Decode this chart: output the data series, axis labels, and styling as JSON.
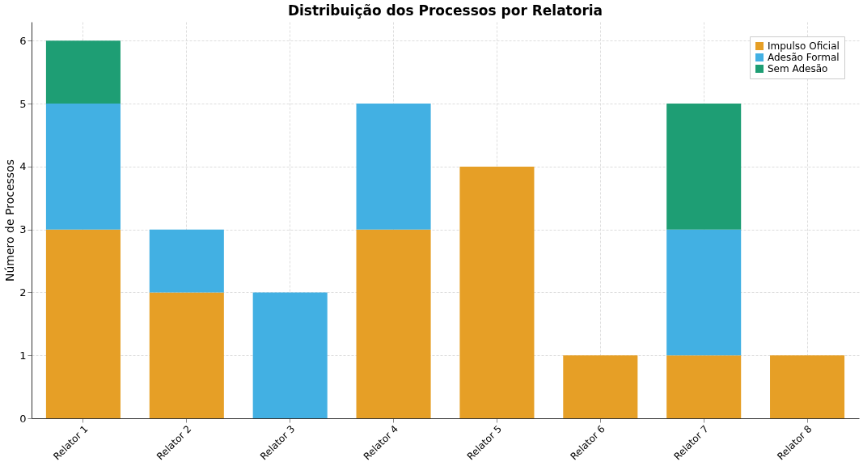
{
  "chart_data": {
    "type": "bar",
    "title": "Distribuição dos Processos por Relatoria",
    "ylabel": "Número de Processos",
    "categories": [
      "Relator 1",
      "Relator 2",
      "Relator 3",
      "Relator 4",
      "Relator 5",
      "Relator 6",
      "Relator 7",
      "Relator 8"
    ],
    "series": [
      {
        "name": "Impulso Oficial",
        "color": "#e69f26",
        "values": [
          3,
          2,
          0,
          3,
          4,
          1,
          1,
          1
        ]
      },
      {
        "name": "Adesão Formal",
        "color": "#42b0e3",
        "values": [
          2,
          1,
          2,
          2,
          0,
          0,
          2,
          0
        ]
      },
      {
        "name": "Sem Adesão",
        "color": "#1e9e74",
        "values": [
          1,
          0,
          0,
          0,
          0,
          0,
          2,
          0
        ]
      }
    ],
    "stacked": true,
    "ylim": [
      0,
      6.3
    ],
    "yticks": [
      0,
      1,
      2,
      3,
      4,
      5,
      6
    ],
    "grid": true,
    "legend": "top right"
  }
}
